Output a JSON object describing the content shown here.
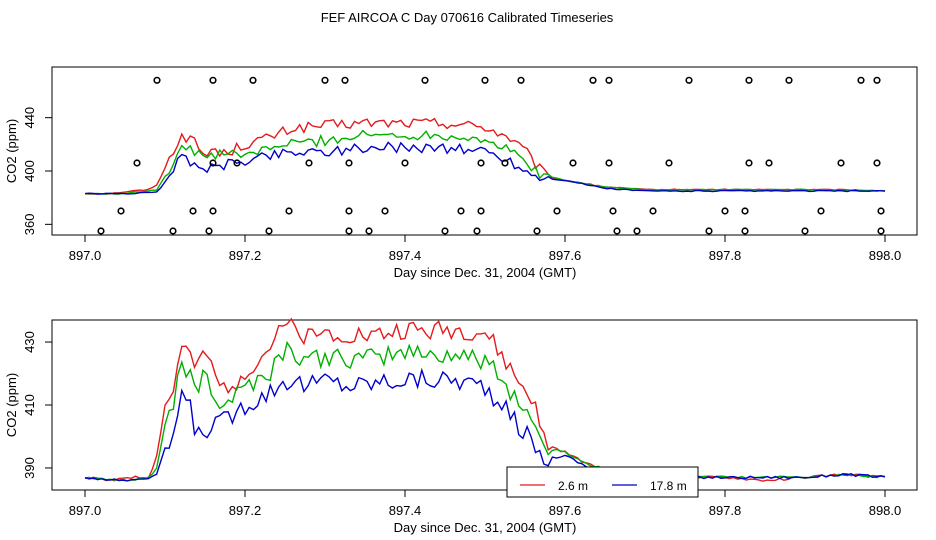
{
  "title": "FEF AIRCOA C  Day 070616  Calibrated Timeseries",
  "chart_data": [
    {
      "type": "line",
      "xlabel": "Day since Dec. 31, 2004 (GMT)",
      "ylabel": "CO2 (ppm)",
      "xlim": [
        897.0,
        898.0
      ],
      "ylim": [
        352,
        478
      ],
      "xticks": [
        897.0,
        897.2,
        897.4,
        897.6,
        897.8,
        898.0
      ],
      "xtick_labels": [
        "897.0",
        "897.2",
        "897.4",
        "897.6",
        "897.8",
        "898.0"
      ],
      "yticks": [
        360,
        400,
        440
      ],
      "ytick_labels": [
        "360",
        "400",
        "440"
      ],
      "series": [
        {
          "name": "2.6 m",
          "color": "#e41a1c",
          "keypoints": [
            [
              897.0,
              383
            ],
            [
              897.03,
              383
            ],
            [
              897.06,
              385
            ],
            [
              897.08,
              386
            ],
            [
              897.09,
              390
            ],
            [
              897.1,
              402
            ],
            [
              897.11,
              415
            ],
            [
              897.12,
              428
            ],
            [
              897.14,
              420
            ],
            [
              897.15,
              410
            ],
            [
              897.16,
              418
            ],
            [
              897.17,
              412
            ],
            [
              897.2,
              420
            ],
            [
              897.23,
              425
            ],
            [
              897.26,
              432
            ],
            [
              897.3,
              434
            ],
            [
              897.35,
              436
            ],
            [
              897.4,
              436
            ],
            [
              897.45,
              436
            ],
            [
              897.5,
              433
            ],
            [
              897.53,
              425
            ],
            [
              897.55,
              415
            ],
            [
              897.57,
              400
            ],
            [
              897.58,
              395
            ],
            [
              897.6,
              393
            ],
            [
              897.65,
              388
            ],
            [
              897.7,
              386
            ],
            [
              897.8,
              386
            ],
            [
              897.9,
              386
            ],
            [
              897.95,
              386
            ],
            [
              898.0,
              385
            ]
          ]
        },
        {
          "name": "",
          "color": "#00b000",
          "keypoints": [
            [
              897.0,
              383
            ],
            [
              897.05,
              383
            ],
            [
              897.09,
              386
            ],
            [
              897.1,
              396
            ],
            [
              897.12,
              418
            ],
            [
              897.14,
              413
            ],
            [
              897.16,
              412
            ],
            [
              897.2,
              412
            ],
            [
              897.25,
              420
            ],
            [
              897.3,
              423
            ],
            [
              897.35,
              427
            ],
            [
              897.4,
              427
            ],
            [
              897.45,
              427
            ],
            [
              897.5,
              424
            ],
            [
              897.53,
              415
            ],
            [
              897.55,
              408
            ],
            [
              897.57,
              397
            ],
            [
              897.6,
              393
            ],
            [
              897.65,
              388
            ],
            [
              897.7,
              386
            ],
            [
              897.8,
              386
            ],
            [
              897.9,
              386
            ],
            [
              898.0,
              385
            ]
          ]
        },
        {
          "name": "17.8 m",
          "color": "#0000cc",
          "keypoints": [
            [
              897.0,
              383
            ],
            [
              897.05,
              383
            ],
            [
              897.09,
              384
            ],
            [
              897.1,
              392
            ],
            [
              897.12,
              410
            ],
            [
              897.14,
              405
            ],
            [
              897.16,
              402
            ],
            [
              897.2,
              408
            ],
            [
              897.25,
              414
            ],
            [
              897.3,
              415
            ],
            [
              897.35,
              417
            ],
            [
              897.4,
              418
            ],
            [
              897.45,
              417
            ],
            [
              897.5,
              415
            ],
            [
              897.53,
              408
            ],
            [
              897.55,
              400
            ],
            [
              897.57,
              395
            ],
            [
              897.6,
              393
            ],
            [
              897.65,
              387
            ],
            [
              897.7,
              385
            ],
            [
              897.8,
              385
            ],
            [
              897.9,
              385
            ],
            [
              898.0,
              385
            ]
          ]
        }
      ],
      "markers": [
        {
          "name": "circles-row-468",
          "y": 468,
          "x": [
            897.09,
            897.16,
            897.21,
            897.3,
            897.325,
            897.425,
            897.5,
            897.545,
            897.635,
            897.655,
            897.755,
            897.83,
            897.88,
            897.97,
            897.99
          ]
        },
        {
          "name": "circles-row-406",
          "y": 406,
          "x": [
            897.065,
            897.16,
            897.19,
            897.28,
            897.33,
            897.4,
            897.495,
            897.525,
            897.61,
            897.655,
            897.73,
            897.83,
            897.855,
            897.945,
            897.99
          ]
        },
        {
          "name": "circles-row-370",
          "y": 370,
          "x": [
            897.045,
            897.135,
            897.16,
            897.255,
            897.33,
            897.375,
            897.47,
            897.495,
            897.59,
            897.66,
            897.71,
            897.8,
            897.825,
            897.92,
            897.995
          ]
        },
        {
          "name": "circles-row-355",
          "y": 355,
          "x": [
            897.02,
            897.11,
            897.155,
            897.23,
            897.33,
            897.355,
            897.45,
            897.49,
            897.565,
            897.665,
            897.69,
            897.78,
            897.825,
            897.9,
            897.995
          ]
        }
      ]
    },
    {
      "type": "line",
      "xlabel": "Day since Dec. 31, 2004 (GMT)",
      "ylabel": "CO2 (ppm)",
      "xlim": [
        897.0,
        898.0
      ],
      "ylim": [
        383,
        437
      ],
      "xticks": [
        897.0,
        897.2,
        897.4,
        897.6,
        897.8,
        898.0
      ],
      "xtick_labels": [
        "897.0",
        "897.2",
        "897.4",
        "897.6",
        "897.8",
        "898.0"
      ],
      "yticks": [
        390,
        410,
        430
      ],
      "ytick_labels": [
        "390",
        "410",
        "430"
      ],
      "series": [
        {
          "name": "2.6 m",
          "color": "#e41a1c",
          "keypoints": [
            [
              897.0,
              387
            ],
            [
              897.03,
              386
            ],
            [
              897.05,
              387
            ],
            [
              897.08,
              387
            ],
            [
              897.09,
              394
            ],
            [
              897.1,
              410
            ],
            [
              897.11,
              413
            ],
            [
              897.12,
              430
            ],
            [
              897.13,
              426
            ],
            [
              897.14,
              420
            ],
            [
              897.15,
              428
            ],
            [
              897.16,
              420
            ],
            [
              897.17,
              415
            ],
            [
              897.19,
              418
            ],
            [
              897.2,
              421
            ],
            [
              897.22,
              425
            ],
            [
              897.25,
              435
            ],
            [
              897.28,
              432
            ],
            [
              897.3,
              433
            ],
            [
              897.33,
              433
            ],
            [
              897.36,
              432
            ],
            [
              897.4,
              434
            ],
            [
              897.43,
              433
            ],
            [
              897.46,
              434
            ],
            [
              897.5,
              433
            ],
            [
              897.52,
              426
            ],
            [
              897.54,
              418
            ],
            [
              897.56,
              412
            ],
            [
              897.57,
              401
            ],
            [
              897.58,
              397
            ],
            [
              897.6,
              395
            ],
            [
              897.63,
              391
            ],
            [
              897.66,
              389
            ],
            [
              897.7,
              388
            ],
            [
              897.75,
              387
            ],
            [
              897.8,
              387
            ],
            [
              897.85,
              386
            ],
            [
              897.9,
              387
            ],
            [
              897.95,
              388
            ],
            [
              898.0,
              387
            ]
          ]
        },
        {
          "name": "",
          "color": "#00b000",
          "keypoints": [
            [
              897.0,
              387
            ],
            [
              897.05,
              386
            ],
            [
              897.08,
              387
            ],
            [
              897.09,
              390
            ],
            [
              897.1,
              404
            ],
            [
              897.11,
              407
            ],
            [
              897.12,
              424
            ],
            [
              897.13,
              420
            ],
            [
              897.14,
              412
            ],
            [
              897.15,
              424
            ],
            [
              897.16,
              414
            ],
            [
              897.17,
              410
            ],
            [
              897.2,
              416
            ],
            [
              897.23,
              420
            ],
            [
              897.25,
              428
            ],
            [
              897.28,
              424
            ],
            [
              897.3,
              425
            ],
            [
              897.33,
              424
            ],
            [
              897.36,
              425
            ],
            [
              897.4,
              427
            ],
            [
              897.43,
              426
            ],
            [
              897.46,
              426
            ],
            [
              897.5,
              424
            ],
            [
              897.52,
              418
            ],
            [
              897.54,
              412
            ],
            [
              897.56,
              405
            ],
            [
              897.57,
              398
            ],
            [
              897.58,
              396
            ],
            [
              897.6,
              395
            ],
            [
              897.63,
              391
            ],
            [
              897.66,
              389
            ],
            [
              897.7,
              388
            ],
            [
              897.8,
              387
            ],
            [
              897.9,
              387
            ],
            [
              897.95,
              388
            ],
            [
              898.0,
              387
            ]
          ]
        },
        {
          "name": "17.8 m",
          "color": "#0000cc",
          "keypoints": [
            [
              897.0,
              387
            ],
            [
              897.05,
              386
            ],
            [
              897.08,
              387
            ],
            [
              897.09,
              388
            ],
            [
              897.1,
              396
            ],
            [
              897.11,
              399
            ],
            [
              897.12,
              414
            ],
            [
              897.13,
              410
            ],
            [
              897.14,
              400
            ],
            [
              897.15,
              402
            ],
            [
              897.16,
              404
            ],
            [
              897.17,
              404
            ],
            [
              897.2,
              410
            ],
            [
              897.23,
              414
            ],
            [
              897.25,
              418
            ],
            [
              897.28,
              416
            ],
            [
              897.3,
              418
            ],
            [
              897.33,
              416
            ],
            [
              897.36,
              417
            ],
            [
              897.4,
              418
            ],
            [
              897.43,
              418
            ],
            [
              897.46,
              418
            ],
            [
              897.5,
              416
            ],
            [
              897.52,
              410
            ],
            [
              897.54,
              404
            ],
            [
              897.56,
              398
            ],
            [
              897.57,
              393
            ],
            [
              897.58,
              393
            ],
            [
              897.6,
              394
            ],
            [
              897.63,
              390
            ],
            [
              897.66,
              388
            ],
            [
              897.7,
              387
            ],
            [
              897.8,
              387
            ],
            [
              897.9,
              387
            ],
            [
              897.95,
              388
            ],
            [
              898.0,
              387
            ]
          ]
        }
      ],
      "legend": {
        "placement": "bottom-right",
        "entries": [
          {
            "label": "2.6 m",
            "color": "#e41a1c"
          },
          {
            "label": "17.8 m",
            "color": "#0000cc"
          }
        ]
      }
    }
  ]
}
